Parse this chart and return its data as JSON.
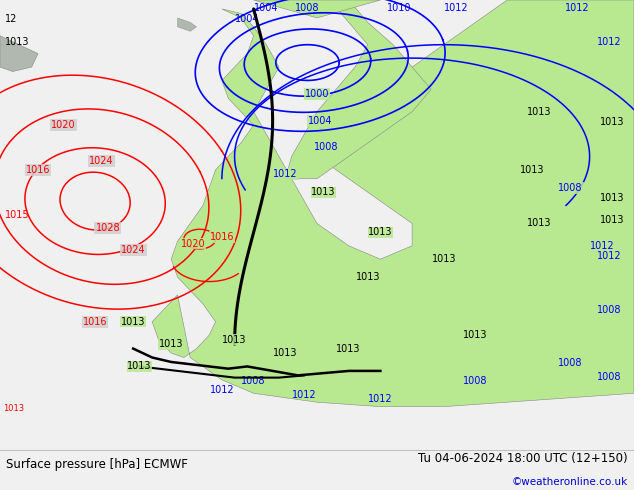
{
  "title_left": "Surface pressure [hPa] ECMWF",
  "title_right": "Tu 04-06-2024 18:00 UTC (12+150)",
  "credit": "©weatheronline.co.uk",
  "figsize": [
    6.34,
    4.9
  ],
  "dpi": 100,
  "ocean_color": "#d0d0d0",
  "land_color": "#b8e890",
  "footer_bg": "#f0f0f0",
  "footer_fontsize": 8.5,
  "credit_color": "#0000cc"
}
